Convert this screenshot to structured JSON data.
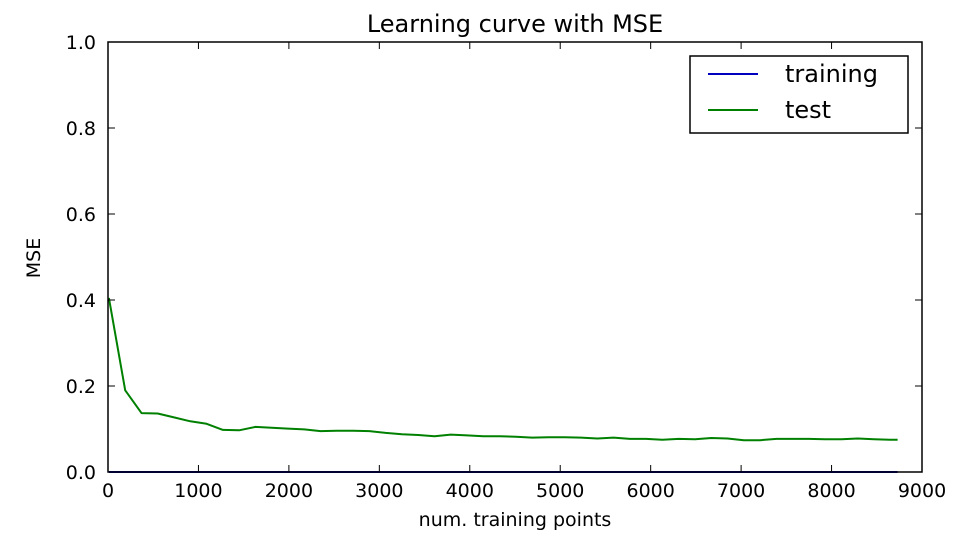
{
  "chart_data": {
    "type": "line",
    "title": "Learning curve with MSE",
    "xlabel": "num. training points",
    "ylabel": "MSE",
    "xlim": [
      0,
      9000
    ],
    "ylim": [
      0,
      1.0
    ],
    "xticks": [
      "0",
      "1000",
      "2000",
      "3000",
      "4000",
      "5000",
      "6000",
      "7000",
      "8000",
      "9000"
    ],
    "yticks": [
      "0.0",
      "0.2",
      "0.4",
      "0.6",
      "0.8",
      "1.0"
    ],
    "grid": false,
    "legend": "top-right",
    "x": [
      10,
      190,
      370,
      550,
      730,
      910,
      1090,
      1270,
      1450,
      1630,
      1810,
      1990,
      2170,
      2350,
      2530,
      2710,
      2890,
      3070,
      3250,
      3430,
      3610,
      3790,
      3970,
      4150,
      4330,
      4510,
      4690,
      4870,
      5050,
      5230,
      5410,
      5590,
      5770,
      5950,
      6130,
      6310,
      6490,
      6670,
      6850,
      7030,
      7210,
      7390,
      7570,
      7750,
      7930,
      8110,
      8290,
      8470,
      8650,
      8730
    ],
    "series": [
      {
        "name": "training",
        "color": "#0000bf",
        "values": [
          0,
          0,
          0,
          0,
          0,
          0,
          0,
          0,
          0,
          0,
          0,
          0,
          0,
          0,
          0,
          0,
          0,
          0,
          0,
          0,
          0,
          0,
          0,
          0,
          0,
          0,
          0,
          0,
          0,
          0,
          0,
          0,
          0,
          0,
          0,
          0,
          0,
          0,
          0,
          0,
          0,
          0,
          0,
          0,
          0,
          0,
          0,
          0,
          0,
          0
        ]
      },
      {
        "name": "test",
        "color": "#008000",
        "values": [
          0.405,
          0.19,
          0.137,
          0.136,
          0.127,
          0.118,
          0.112,
          0.098,
          0.097,
          0.105,
          0.103,
          0.101,
          0.099,
          0.095,
          0.096,
          0.096,
          0.095,
          0.091,
          0.088,
          0.086,
          0.083,
          0.087,
          0.085,
          0.083,
          0.083,
          0.082,
          0.08,
          0.081,
          0.081,
          0.08,
          0.078,
          0.08,
          0.077,
          0.077,
          0.075,
          0.077,
          0.076,
          0.079,
          0.078,
          0.074,
          0.074,
          0.077,
          0.077,
          0.077,
          0.076,
          0.076,
          0.078,
          0.076,
          0.075,
          0.075
        ]
      }
    ]
  }
}
